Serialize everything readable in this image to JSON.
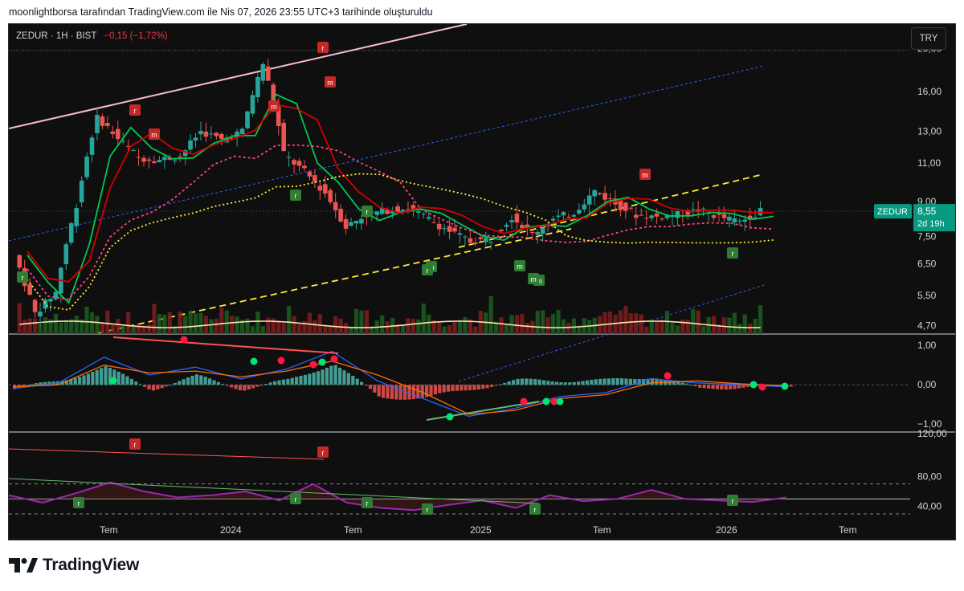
{
  "header": {
    "attribution": "moonlightborsa tarafından TradingView.com ile Nis 07, 2026 23:55 UTC+3 tarihinde oluşturuldu"
  },
  "legend": {
    "symbol": "ZEDUR",
    "interval": "1H",
    "exchange": "BIST",
    "change": "−0,15 (−1,72%)"
  },
  "currency_button": "TRY",
  "price_tag": {
    "symbol": "ZEDUR",
    "price": "8,55",
    "countdown": "2d 19h"
  },
  "branding": "TradingView",
  "colors": {
    "up": "#26a69a",
    "down": "#ef5350",
    "background": "#0f0f0f",
    "macd_line": "#2962ff",
    "signal_line": "#ff6d00",
    "rsi_line": "#9c27b0",
    "ema_fast": "#00c853",
    "ema_slow": "#d50000",
    "sma_long": "#ffeb3b"
  },
  "chart_data": [
    {
      "type": "line",
      "title": "ZEDUR · 1H · BIST",
      "y_scale": "log",
      "ylim": [
        4.5,
        22
      ],
      "y_ticks": [
        "20,00",
        "16,00",
        "13,00",
        "11,00",
        "9,00",
        "7,50",
        "6,50",
        "5,50",
        "4,70"
      ],
      "x_ticks": [
        "Tem",
        "2024",
        "Tem",
        "2025",
        "Tem",
        "2026",
        "Tem"
      ],
      "close_series": [
        {
          "x": "2023-04",
          "y": 6.8
        },
        {
          "x": "2023-05",
          "y": 5.0
        },
        {
          "x": "2023-06",
          "y": 5.6
        },
        {
          "x": "2023-07",
          "y": 8.8
        },
        {
          "x": "2023-08",
          "y": 14.0
        },
        {
          "x": "2023-09",
          "y": 12.5
        },
        {
          "x": "2023-10",
          "y": 11.3
        },
        {
          "x": "2023-11",
          "y": 11.2
        },
        {
          "x": "2023-12",
          "y": 11.4
        },
        {
          "x": "2024-01",
          "y": 13.0
        },
        {
          "x": "2024-02",
          "y": 12.4
        },
        {
          "x": "2024-03",
          "y": 13.0
        },
        {
          "x": "2024-04",
          "y": 18.5
        },
        {
          "x": "2024-05",
          "y": 11.5
        },
        {
          "x": "2024-06",
          "y": 10.5
        },
        {
          "x": "2024-07",
          "y": 9.4
        },
        {
          "x": "2024-08",
          "y": 7.9
        },
        {
          "x": "2024-09",
          "y": 8.4
        },
        {
          "x": "2024-10",
          "y": 8.6
        },
        {
          "x": "2024-11",
          "y": 8.7
        },
        {
          "x": "2024-12",
          "y": 8.2
        },
        {
          "x": "2025-01",
          "y": 7.7
        },
        {
          "x": "2025-02",
          "y": 7.3
        },
        {
          "x": "2025-03",
          "y": 7.4
        },
        {
          "x": "2025-04",
          "y": 8.3
        },
        {
          "x": "2025-05",
          "y": 7.6
        },
        {
          "x": "2025-06",
          "y": 8.2
        },
        {
          "x": "2025-07",
          "y": 8.5
        },
        {
          "x": "2025-08",
          "y": 9.5
        },
        {
          "x": "2025-09",
          "y": 8.9
        },
        {
          "x": "2025-10",
          "y": 8.4
        },
        {
          "x": "2025-11",
          "y": 8.3
        },
        {
          "x": "2025-12",
          "y": 8.4
        },
        {
          "x": "2026-01",
          "y": 8.6
        },
        {
          "x": "2026-02",
          "y": 8.3
        },
        {
          "x": "2026-03",
          "y": 8.1
        },
        {
          "x": "2026-04",
          "y": 8.55
        }
      ],
      "last_price": 8.55
    },
    {
      "type": "line",
      "y_ticks": [
        "1,00",
        "0,00",
        "−1,00"
      ],
      "ylim": [
        -1.2,
        1.25
      ],
      "series": [
        {
          "values": [
            -0.1,
            0.05,
            0.7,
            0.25,
            0.45,
            0.15,
            0.4,
            0.85,
            0.1,
            -0.35,
            -0.8,
            -0.6,
            -0.3,
            -0.2,
            0.15,
            0.05,
            0.0,
            -0.05
          ]
        },
        {
          "values": [
            -0.05,
            0.0,
            0.5,
            0.3,
            0.35,
            0.2,
            0.35,
            0.6,
            0.25,
            -0.2,
            -0.75,
            -0.65,
            -0.35,
            -0.25,
            0.05,
            0.1,
            0.02,
            -0.03
          ]
        }
      ]
    },
    {
      "type": "line",
      "y_ticks": [
        "120,00",
        "80,00",
        "40,00"
      ],
      "ylim": [
        0,
        120
      ],
      "series": [
        {
          "values": [
            55,
            45,
            58,
            72,
            60,
            52,
            55,
            60,
            48,
            70,
            45,
            38,
            35,
            42,
            48,
            38,
            55,
            47,
            50,
            62,
            50,
            48,
            46,
            52
          ]
        }
      ]
    }
  ]
}
